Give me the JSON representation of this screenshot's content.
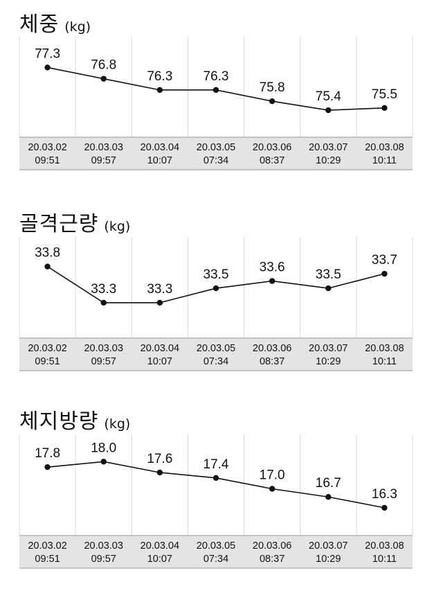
{
  "chart_data": [
    {
      "type": "line",
      "title": "체중",
      "unit": "(kg)",
      "categories": [
        {
          "date": "20.03.02",
          "time": "09:51"
        },
        {
          "date": "20.03.03",
          "time": "09:57"
        },
        {
          "date": "20.03.04",
          "time": "10:07"
        },
        {
          "date": "20.03.05",
          "time": "07:34"
        },
        {
          "date": "20.03.06",
          "time": "08:37"
        },
        {
          "date": "20.03.07",
          "time": "10:29"
        },
        {
          "date": "20.03.08",
          "time": "10:11"
        }
      ],
      "values": [
        77.3,
        76.8,
        76.3,
        76.3,
        75.8,
        75.4,
        75.5
      ],
      "labels": [
        "77.3",
        "76.8",
        "76.3",
        "76.3",
        "75.8",
        "75.4",
        "75.5"
      ],
      "grid": "vertical",
      "ylim": [
        75.0,
        77.9
      ]
    },
    {
      "type": "line",
      "title": "골격근량",
      "unit": "(kg)",
      "categories": [
        {
          "date": "20.03.02",
          "time": "09:51"
        },
        {
          "date": "20.03.03",
          "time": "09:57"
        },
        {
          "date": "20.03.04",
          "time": "10:07"
        },
        {
          "date": "20.03.05",
          "time": "07:34"
        },
        {
          "date": "20.03.06",
          "time": "08:37"
        },
        {
          "date": "20.03.07",
          "time": "10:29"
        },
        {
          "date": "20.03.08",
          "time": "10:11"
        }
      ],
      "values": [
        33.8,
        33.3,
        33.3,
        33.5,
        33.6,
        33.5,
        33.7
      ],
      "labels": [
        "33.8",
        "33.3",
        "33.3",
        "33.5",
        "33.6",
        "33.5",
        "33.7"
      ],
      "grid": "vertical",
      "ylim": [
        33.06,
        33.96
      ]
    },
    {
      "type": "line",
      "title": "체지방량",
      "unit": "(kg)",
      "categories": [
        {
          "date": "20.03.02",
          "time": "09:51"
        },
        {
          "date": "20.03.03",
          "time": "09:57"
        },
        {
          "date": "20.03.04",
          "time": "10:07"
        },
        {
          "date": "20.03.05",
          "time": "07:34"
        },
        {
          "date": "20.03.06",
          "time": "08:37"
        },
        {
          "date": "20.03.07",
          "time": "10:29"
        },
        {
          "date": "20.03.08",
          "time": "10:11"
        }
      ],
      "values": [
        17.8,
        18.0,
        17.6,
        17.4,
        17.0,
        16.7,
        16.3
      ],
      "labels": [
        "17.8",
        "18.0",
        "17.6",
        "17.4",
        "17.0",
        "16.7",
        "16.3"
      ],
      "grid": "vertical",
      "ylim": [
        15.94,
        18.34
      ]
    }
  ],
  "colors": {
    "line": "#111111",
    "grid": "#d9d9d9",
    "axis_band": "#e4e4e4",
    "axis_border": "#b3b3b3"
  }
}
